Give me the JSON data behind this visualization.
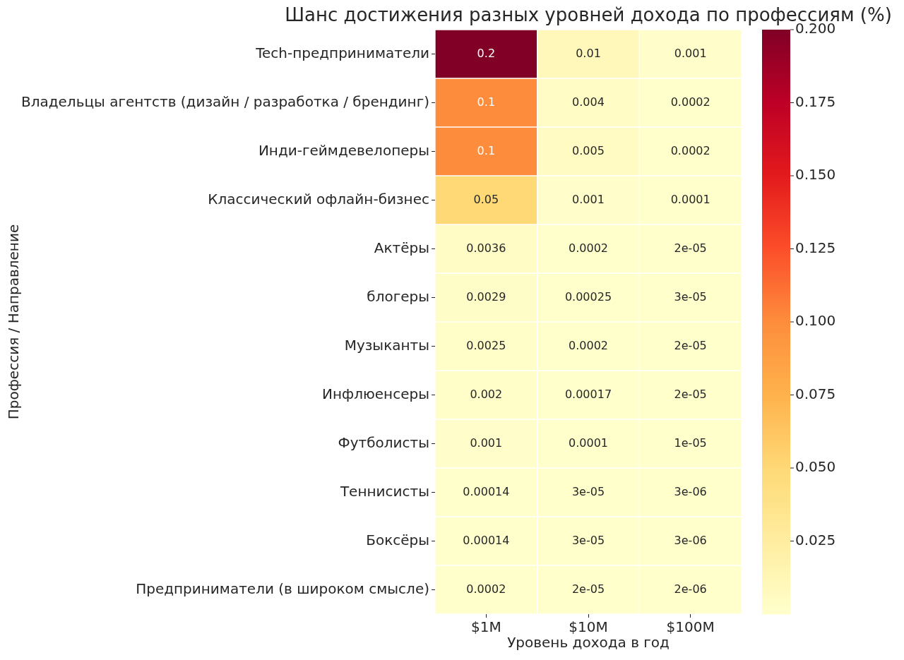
{
  "chart_data": {
    "type": "heatmap",
    "title": "Шанс достижения разных уровней дохода по профессиям (%)",
    "xlabel": "Уровень дохода в год",
    "ylabel": "Профессия / Направление",
    "categories": [
      "$1M",
      "$10M",
      "$100M"
    ],
    "y_categories": [
      "Tech-предприниматели",
      "Владельцы агентств (дизайн / разработка / брендинг)",
      "Инди-геймдевелоперы",
      "Классический офлайн-бизнес",
      "Актёры",
      "блогеры",
      "Музыканты",
      "Инфлюенсеры",
      "Футболисты",
      "Теннисисты",
      "Боксёры",
      "Предприниматели (в широком смысле)"
    ],
    "cells": [
      [
        0.2,
        0.01,
        0.001
      ],
      [
        0.1,
        0.004,
        0.0002
      ],
      [
        0.1,
        0.005,
        0.0002
      ],
      [
        0.05,
        0.001,
        0.0001
      ],
      [
        0.0036,
        0.0002,
        2e-05
      ],
      [
        0.0029,
        0.00025,
        3e-05
      ],
      [
        0.0025,
        0.0002,
        2e-05
      ],
      [
        0.002,
        0.00017,
        2e-05
      ],
      [
        0.001,
        0.0001,
        1e-05
      ],
      [
        0.00014,
        3e-05,
        3e-06
      ],
      [
        0.00014,
        3e-05,
        3e-06
      ],
      [
        0.0002,
        2e-05,
        2e-06
      ]
    ],
    "cell_labels": [
      [
        "0.2",
        "0.01",
        "0.001"
      ],
      [
        "0.1",
        "0.004",
        "0.0002"
      ],
      [
        "0.1",
        "0.005",
        "0.0002"
      ],
      [
        "0.05",
        "0.001",
        "0.0001"
      ],
      [
        "0.0036",
        "0.0002",
        "2e-05"
      ],
      [
        "0.0029",
        "0.00025",
        "3e-05"
      ],
      [
        "0.0025",
        "0.0002",
        "2e-05"
      ],
      [
        "0.002",
        "0.00017",
        "2e-05"
      ],
      [
        "0.001",
        "0.0001",
        "1e-05"
      ],
      [
        "0.00014",
        "3e-05",
        "3e-06"
      ],
      [
        "0.00014",
        "3e-05",
        "3e-06"
      ],
      [
        "0.0002",
        "2e-05",
        "2e-06"
      ]
    ],
    "clim": [
      0,
      0.2
    ],
    "cticks": [
      0.025,
      {
        "value": 0.05,
        "label": "0.050"
      },
      0.075,
      {
        "value": 0.1,
        "label": "0.100"
      },
      0.125,
      {
        "value": 0.15,
        "label": "0.150"
      },
      0.175,
      {
        "value": 0.2,
        "label": "0.200"
      }
    ]
  }
}
